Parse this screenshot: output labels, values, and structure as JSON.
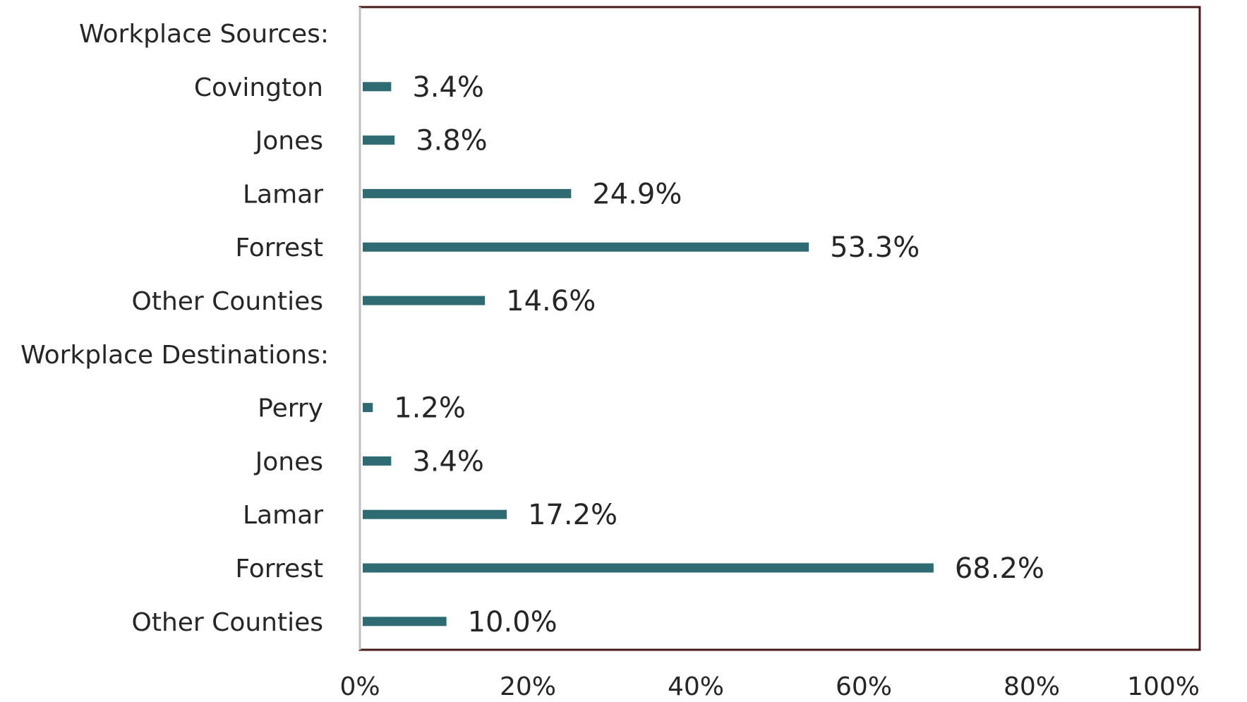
{
  "chart_data": {
    "type": "bar",
    "orientation": "horizontal",
    "categories": [
      "Workplace Sources:",
      "Covington",
      "Jones",
      "Lamar",
      "Forrest",
      "Other Counties",
      "Workplace Destinations:",
      "Perry",
      "Jones",
      "Lamar",
      "Forrest",
      "Other Counties"
    ],
    "values": [
      null,
      3.4,
      3.8,
      24.9,
      53.3,
      14.6,
      null,
      1.2,
      3.4,
      17.2,
      68.2,
      10.0
    ],
    "data_labels": [
      "",
      "3.4%",
      "3.8%",
      "24.9%",
      "53.3%",
      "14.6%",
      "",
      "1.2%",
      "3.4%",
      "17.2%",
      "68.2%",
      "10.0%"
    ],
    "x_ticks": [
      "0%",
      "20%",
      "40%",
      "60%",
      "80%",
      "100%"
    ],
    "xlim": [
      0,
      100
    ],
    "grid": false,
    "legend": "none",
    "bar_color": "#2e6b72",
    "frame_color": "#4a1a1a"
  }
}
